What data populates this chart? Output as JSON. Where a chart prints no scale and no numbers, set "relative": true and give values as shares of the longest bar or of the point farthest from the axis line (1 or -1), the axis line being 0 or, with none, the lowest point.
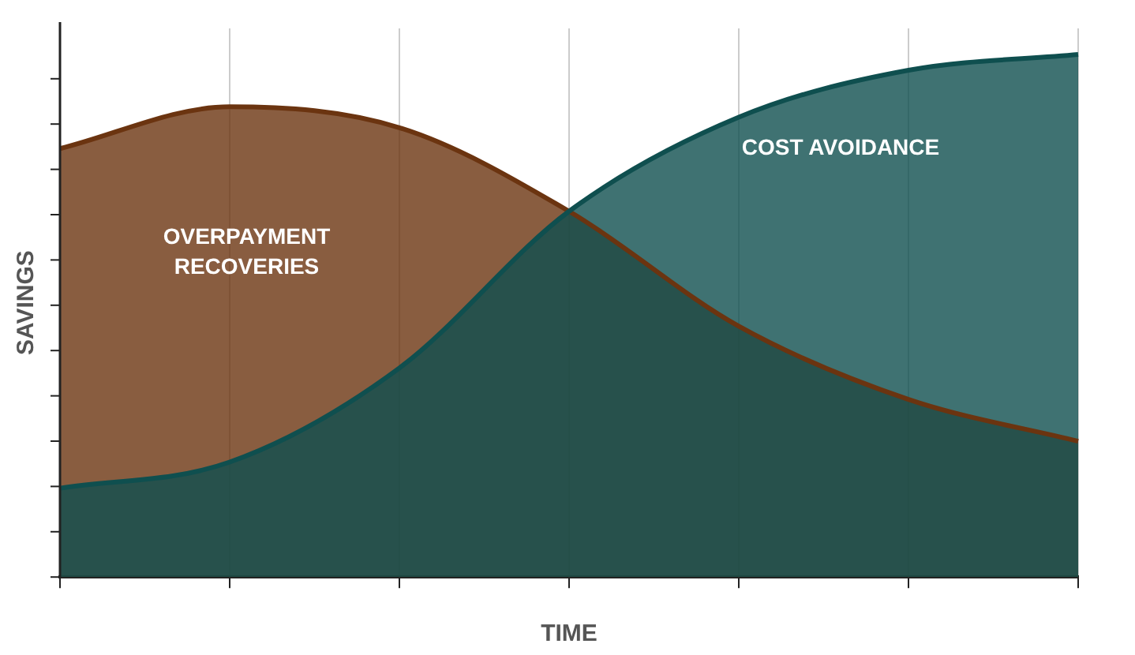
{
  "chart_data": {
    "type": "area",
    "xlabel": "TIME",
    "ylabel": "SAVINGS",
    "relative": true,
    "grid": "x",
    "legend": false,
    "categories": [
      null,
      null,
      null,
      null,
      null,
      null,
      null
    ],
    "series": [
      {
        "name": "OVERPAYMENT RECOVERIES",
        "color": "#6b3410",
        "values": [
          0.82,
          0.9,
          0.86,
          0.7,
          0.48,
          0.34,
          0.26
        ]
      },
      {
        "name": "COST AVOIDANCE",
        "color": "#0f4f4f",
        "values": [
          0.17,
          0.22,
          0.4,
          0.7,
          0.88,
          0.97,
          1
        ]
      }
    ]
  }
}
